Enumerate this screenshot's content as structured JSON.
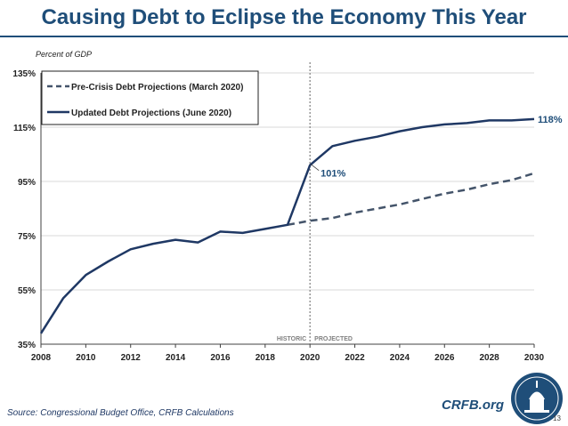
{
  "slide": {
    "title": "Causing Debt to Eclipse the Economy This Year",
    "source": "Source: Congressional Budget Office, CRFB Calculations",
    "brand": "CRFB.org",
    "page_number": "13"
  },
  "colors": {
    "title": "#1f4e79",
    "updated_series": "#1f3864",
    "precrisis_series": "#44546a",
    "divider": "#7f7f7f",
    "grid": "#d9d9d9"
  },
  "chart_data": {
    "type": "line",
    "ylabel": "Percent of GDP",
    "ylim": [
      35,
      135
    ],
    "xlim": [
      2008,
      2030
    ],
    "y_ticks": [
      35,
      55,
      75,
      95,
      115,
      135
    ],
    "y_tick_labels": [
      "35%",
      "55%",
      "75%",
      "95%",
      "115%",
      "135%"
    ],
    "x_ticks": [
      2008,
      2010,
      2012,
      2014,
      2016,
      2018,
      2020,
      2022,
      2024,
      2026,
      2028,
      2030
    ],
    "x_tick_labels": [
      "2008",
      "2010",
      "2012",
      "2014",
      "2016",
      "2018",
      "2020",
      "2022",
      "2024",
      "2026",
      "2028",
      "2030"
    ],
    "grid": "horizontal",
    "legend_position": "top-left",
    "divider_x": 2020,
    "region_labels": {
      "historic": "HISTORIC",
      "projected": "PROJECTED"
    },
    "series": [
      {
        "name": "Pre-Crisis Debt Projections (March 2020)",
        "style": "dashed",
        "x": [
          2019,
          2020,
          2021,
          2022,
          2023,
          2024,
          2025,
          2026,
          2027,
          2028,
          2029,
          2030
        ],
        "values": [
          79,
          80.5,
          81.5,
          83.5,
          85,
          86.5,
          88.5,
          90.5,
          92,
          94,
          95.5,
          98
        ]
      },
      {
        "name": "Updated Debt Projections (June 2020)",
        "style": "solid",
        "x": [
          2008,
          2009,
          2010,
          2011,
          2012,
          2013,
          2014,
          2015,
          2016,
          2017,
          2018,
          2019,
          2020,
          2021,
          2022,
          2023,
          2024,
          2025,
          2026,
          2027,
          2028,
          2029,
          2030
        ],
        "values": [
          39,
          52,
          60.5,
          65.5,
          70,
          72,
          73.5,
          72.5,
          76.5,
          76,
          77.5,
          79,
          101,
          108,
          110,
          111.5,
          113.5,
          115,
          116,
          116.5,
          117.5,
          117.5,
          118
        ]
      }
    ],
    "annotations": [
      {
        "x": 2020,
        "y": 101,
        "text": "101%"
      },
      {
        "x": 2030,
        "y": 118,
        "text": "118%"
      }
    ]
  }
}
